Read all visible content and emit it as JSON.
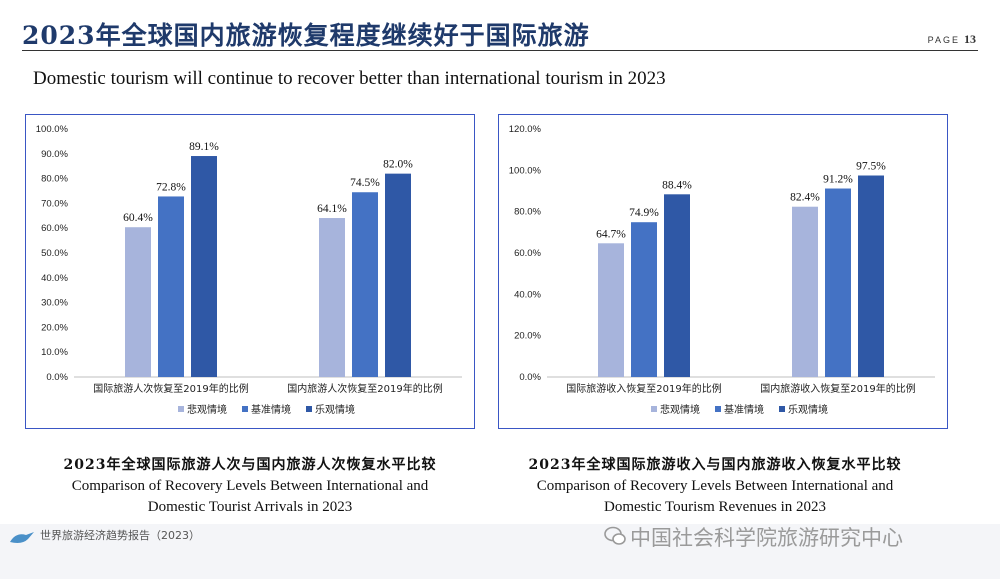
{
  "header": {
    "title": "2023年全球国内旅游恢复程度继续好于国际旅游",
    "page_label": "PAGE",
    "page_number": "13"
  },
  "subtitle": "Domestic tourism will continue to recover better than international tourism in 2023",
  "colors": {
    "pessimistic": "#a7b4dc",
    "baseline": "#4472c4",
    "optimistic": "#2f58a6",
    "frame": "#3a56c4"
  },
  "captions": {
    "left": {
      "cn": "2023年全球国际旅游人次与国内旅游人次恢复水平比较",
      "en1": "Comparison of Recovery Levels Between International and",
      "en2": "Domestic Tourist Arrivals in 2023"
    },
    "right": {
      "cn": "2023年全球国际旅游收入与国内旅游收入恢复水平比较",
      "en1": "Comparison of Recovery Levels Between International and",
      "en2": "Domestic Tourism Revenues in 2023"
    }
  },
  "footer": {
    "text": "世界旅游经济趋势报告（2023）",
    "watermark": "中国社会科学院旅游研究中心"
  },
  "chart_data": [
    {
      "type": "bar",
      "categories": [
        "国际旅游人次恢复至2019年的比例",
        "国内旅游人次恢复至2019年的比例"
      ],
      "series": [
        {
          "name": "悲观情境",
          "values": [
            60.4,
            64.1
          ],
          "labels": [
            "60.4%",
            "64.1%"
          ]
        },
        {
          "name": "基准情境",
          "values": [
            72.8,
            74.5
          ],
          "labels": [
            "72.8%",
            "74.5%"
          ]
        },
        {
          "name": "乐观情境",
          "values": [
            89.1,
            82.0
          ],
          "labels": [
            "89.1%",
            "82.0%"
          ]
        }
      ],
      "ylim": [
        0,
        100
      ],
      "yticks": [
        "0.0%",
        "10.0%",
        "20.0%",
        "30.0%",
        "40.0%",
        "50.0%",
        "60.0%",
        "70.0%",
        "80.0%",
        "90.0%",
        "100.0%"
      ],
      "legend": "bottom",
      "grid": false
    },
    {
      "type": "bar",
      "categories": [
        "国际旅游收入恢复至2019年的比例",
        "国内旅游收入恢复至2019年的比例"
      ],
      "series": [
        {
          "name": "悲观情境",
          "values": [
            64.7,
            82.4
          ],
          "labels": [
            "64.7%",
            "82.4%"
          ]
        },
        {
          "name": "基准情境",
          "values": [
            74.9,
            91.2
          ],
          "labels": [
            "74.9%",
            "91.2%"
          ]
        },
        {
          "name": "乐观情境",
          "values": [
            88.4,
            97.5
          ],
          "labels": [
            "88.4%",
            "97.5%"
          ]
        }
      ],
      "ylim": [
        0,
        120
      ],
      "yticks": [
        "0.0%",
        "20.0%",
        "40.0%",
        "60.0%",
        "80.0%",
        "100.0%",
        "120.0%"
      ],
      "legend": "bottom",
      "grid": false
    }
  ]
}
